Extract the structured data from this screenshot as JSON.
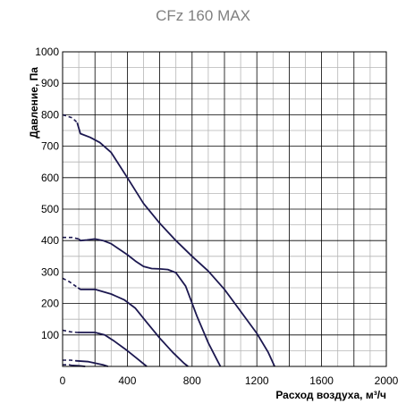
{
  "chart_data": {
    "type": "line",
    "title": "CFz 160 MAX",
    "xlabel": "Расход воздуха, м³/ч",
    "ylabel": "Давление, Па",
    "xlim": [
      0,
      2000
    ],
    "ylim": [
      0,
      1000
    ],
    "x_ticks": [
      0,
      400,
      800,
      1200,
      1600,
      2000
    ],
    "y_ticks": [
      100,
      200,
      300,
      400,
      500,
      600,
      700,
      800,
      900,
      1000
    ],
    "grid": true,
    "colors": {
      "curve": "#1c1850",
      "grid_major": "#000000",
      "grid_minor": "#b5b5b5"
    },
    "series": [
      {
        "dashed": [
          [
            0,
            800
          ],
          [
            60,
            790
          ],
          [
            90,
            775
          ]
        ],
        "values": [
          [
            90,
            775
          ],
          [
            110,
            740
          ],
          [
            170,
            728
          ],
          [
            230,
            712
          ],
          [
            300,
            680
          ],
          [
            400,
            600
          ],
          [
            500,
            518
          ],
          [
            600,
            455
          ],
          [
            700,
            400
          ],
          [
            800,
            350
          ],
          [
            900,
            303
          ],
          [
            1000,
            245
          ],
          [
            1100,
            175
          ],
          [
            1200,
            105
          ],
          [
            1270,
            45
          ],
          [
            1310,
            0
          ]
        ]
      },
      {
        "dashed": [
          [
            0,
            410
          ],
          [
            60,
            410
          ],
          [
            100,
            405
          ]
        ],
        "values": [
          [
            100,
            405
          ],
          [
            110,
            400
          ],
          [
            150,
            402
          ],
          [
            200,
            405
          ],
          [
            250,
            400
          ],
          [
            300,
            390
          ],
          [
            400,
            355
          ],
          [
            450,
            335
          ],
          [
            500,
            318
          ],
          [
            550,
            311
          ],
          [
            600,
            310
          ],
          [
            650,
            308
          ],
          [
            700,
            298
          ],
          [
            760,
            255
          ],
          [
            830,
            160
          ],
          [
            900,
            75
          ],
          [
            950,
            25
          ],
          [
            975,
            0
          ]
        ]
      },
      {
        "dashed": [
          [
            0,
            280
          ],
          [
            40,
            270
          ],
          [
            95,
            250
          ]
        ],
        "values": [
          [
            95,
            250
          ],
          [
            110,
            245
          ],
          [
            200,
            245
          ],
          [
            300,
            230
          ],
          [
            380,
            212
          ],
          [
            450,
            185
          ],
          [
            520,
            140
          ],
          [
            600,
            90
          ],
          [
            680,
            45
          ],
          [
            750,
            10
          ],
          [
            775,
            0
          ]
        ]
      },
      {
        "dashed": [
          [
            0,
            115
          ],
          [
            50,
            110
          ],
          [
            90,
            108
          ]
        ],
        "values": [
          [
            90,
            108
          ],
          [
            200,
            108
          ],
          [
            260,
            100
          ],
          [
            320,
            80
          ],
          [
            400,
            50
          ],
          [
            460,
            25
          ],
          [
            520,
            0
          ]
        ]
      },
      {
        "dashed": [
          [
            0,
            20
          ],
          [
            50,
            20
          ],
          [
            80,
            18
          ]
        ],
        "values": [
          [
            80,
            18
          ],
          [
            160,
            15
          ],
          [
            250,
            5
          ],
          [
            280,
            0
          ]
        ]
      },
      {
        "dashed": [
          [
            0,
            5
          ],
          [
            40,
            5
          ],
          [
            60,
            3
          ]
        ],
        "values": [
          [
            60,
            3
          ],
          [
            100,
            2
          ],
          [
            140,
            0
          ]
        ]
      }
    ]
  }
}
